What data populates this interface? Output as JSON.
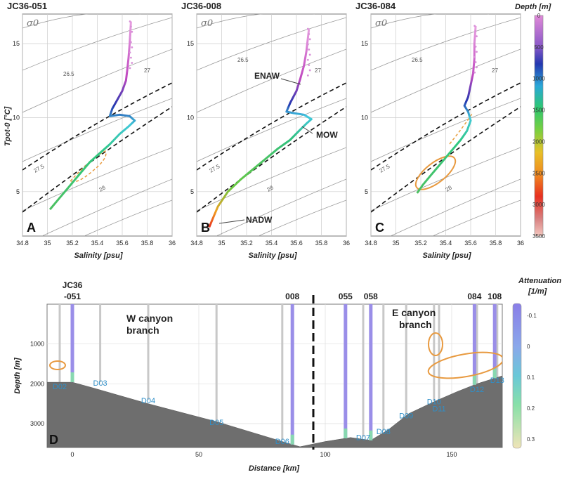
{
  "chart_data": [
    {
      "type": "scatter",
      "panel_label": "A",
      "title": "JC36-051",
      "xlabel": "Salinity [psu]",
      "ylabel": "Tpot-0 [°C]",
      "xlim": [
        34.8,
        36
      ],
      "ylim": [
        2,
        17
      ],
      "xticks": [
        "34.8",
        "35",
        "35.2",
        "35.4",
        "35.6",
        "35.8",
        "36"
      ],
      "yticks": [
        "5",
        "10",
        "15"
      ],
      "sigma_label": "σ0",
      "isopycnal_labels": [
        "26.5",
        "27",
        "27.5",
        "28"
      ],
      "grid": true,
      "series": [
        {
          "name": "profile",
          "salinity": [
            35.02,
            35.1,
            35.18,
            35.26,
            35.34,
            35.42,
            35.5,
            35.58,
            35.65,
            35.7,
            35.66,
            35.58,
            35.5,
            35.52,
            35.56,
            35.6,
            35.63,
            35.64,
            35.65,
            35.66,
            35.67
          ],
          "temperature": [
            3.8,
            4.6,
            5.4,
            6.2,
            7.0,
            7.6,
            8.2,
            8.9,
            9.4,
            9.8,
            10.1,
            10.2,
            10.1,
            10.6,
            11.2,
            11.8,
            12.5,
            13.2,
            14.0,
            15.0,
            16.5
          ]
        }
      ]
    },
    {
      "type": "scatter",
      "panel_label": "B",
      "title": "JC36-008",
      "xlabel": "Salinity [psu]",
      "ylabel": "",
      "xlim": [
        34.8,
        36
      ],
      "ylim": [
        2,
        17
      ],
      "xticks": [
        "34.8",
        "35",
        "35.2",
        "35.4",
        "35.6",
        "35.8",
        "36"
      ],
      "yticks": [
        "5",
        "10",
        "15"
      ],
      "sigma_label": "σ0",
      "isopycnal_labels": [
        "26.5",
        "27",
        "27.5",
        "28"
      ],
      "grid": true,
      "annotations": [
        "ENAW",
        "MOW",
        "NADW"
      ],
      "series": [
        {
          "name": "profile",
          "salinity": [
            34.9,
            34.93,
            34.97,
            35.05,
            35.15,
            35.25,
            35.35,
            35.45,
            35.55,
            35.62,
            35.68,
            35.72,
            35.66,
            35.58,
            35.52,
            35.55,
            35.6,
            35.63,
            35.66,
            35.68,
            35.7
          ],
          "temperature": [
            2.6,
            3.2,
            4.0,
            5.0,
            5.8,
            6.5,
            7.2,
            7.9,
            8.5,
            9.1,
            9.6,
            9.9,
            10.2,
            10.3,
            10.4,
            11.0,
            11.8,
            12.6,
            13.5,
            14.5,
            16.0
          ]
        }
      ]
    },
    {
      "type": "scatter",
      "panel_label": "C",
      "title": "JC36-084",
      "xlabel": "Salinity [psu]",
      "ylabel": "",
      "xlim": [
        34.8,
        36
      ],
      "ylim": [
        2,
        17
      ],
      "xticks": [
        "34.8",
        "35",
        "35.2",
        "35.4",
        "35.6",
        "35.8",
        "36"
      ],
      "yticks": [
        "5",
        "10",
        "15"
      ],
      "sigma_label": "σ0",
      "isopycnal_labels": [
        "26.5",
        "27",
        "27.5",
        "28"
      ],
      "grid": true,
      "series": [
        {
          "name": "profile",
          "salinity": [
            35.17,
            35.22,
            35.28,
            35.34,
            35.4,
            35.46,
            35.52,
            35.57,
            35.6,
            35.58,
            35.55,
            35.58,
            35.6,
            35.62,
            35.63,
            35.63,
            35.64
          ],
          "temperature": [
            4.9,
            5.5,
            6.1,
            6.7,
            7.3,
            7.9,
            8.5,
            9.1,
            9.8,
            10.4,
            10.8,
            11.4,
            12.2,
            13.0,
            14.0,
            15.0,
            16.2
          ]
        }
      ]
    },
    {
      "type": "section",
      "panel_label": "D",
      "xlabel": "Distance [km]",
      "ylabel": "Depth [m]",
      "xlim": [
        -10,
        170
      ],
      "ylim": [
        3600,
        0
      ],
      "xticks": [
        "0",
        "50",
        "100",
        "150"
      ],
      "yticks": [
        "1000",
        "2000",
        "3000"
      ],
      "colorbar_title": "Attenuation [1/m]",
      "colorbar_ticks": [
        "-0.1",
        "0",
        "0.1",
        "0.2",
        "0.3"
      ],
      "stations": [
        {
          "name": "JC36 -051",
          "x": 0
        },
        {
          "name": "008",
          "x": 87
        },
        {
          "name": "055",
          "x": 108
        },
        {
          "name": "058",
          "x": 118
        },
        {
          "name": "084",
          "x": 159
        },
        {
          "name": "108",
          "x": 167
        }
      ],
      "moorings": [
        {
          "name": "D02",
          "x": -5,
          "depth": 2050
        },
        {
          "name": "D03",
          "x": 11,
          "depth": 1960
        },
        {
          "name": "D04",
          "x": 30,
          "depth": 2400
        },
        {
          "name": "D05",
          "x": 57,
          "depth": 2950
        },
        {
          "name": "D06",
          "x": 83,
          "depth": 3420
        },
        {
          "name": "D07",
          "x": 115,
          "depth": 3330
        },
        {
          "name": "D08",
          "x": 123,
          "depth": 3180
        },
        {
          "name": "D09",
          "x": 132,
          "depth": 2780
        },
        {
          "name": "D10",
          "x": 143,
          "depth": 2430
        },
        {
          "name": "D11",
          "x": 145,
          "depth": 2600
        },
        {
          "name": "D12",
          "x": 160,
          "depth": 2120
        },
        {
          "name": "D13",
          "x": 168,
          "depth": 1890
        }
      ],
      "labels": {
        "west": "W canyon branch",
        "east": "E canyon branch"
      }
    }
  ],
  "depth_colorbar": {
    "title": "Depth [m]",
    "ticks": [
      "0",
      "500",
      "1000",
      "1500",
      "2000",
      "2500",
      "3000",
      "3500"
    ]
  }
}
